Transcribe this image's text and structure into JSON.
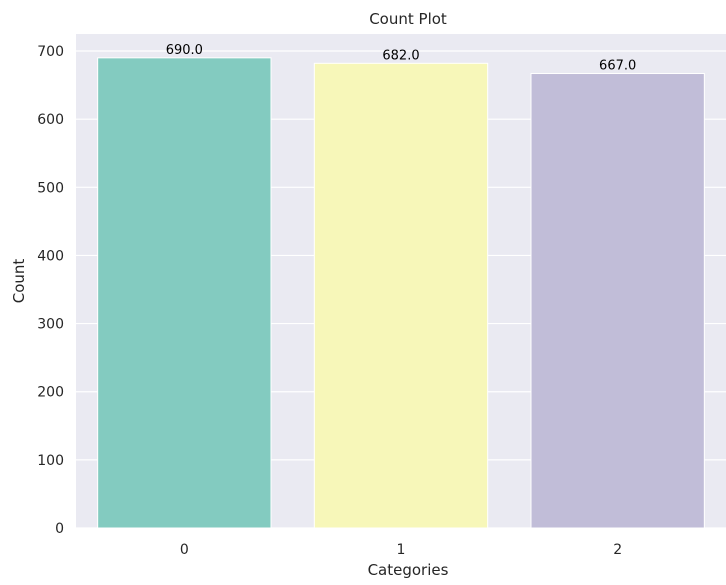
{
  "chart_data": {
    "type": "bar",
    "title": "Count Plot",
    "xlabel": "Categories",
    "ylabel": "Count",
    "categories": [
      "0",
      "1",
      "2"
    ],
    "values": [
      690,
      682,
      667
    ],
    "value_labels": [
      "690.0",
      "682.0",
      "667.0"
    ],
    "colors": [
      "#83cbc0",
      "#f7f7b9",
      "#c1bdd8"
    ],
    "ylim": [
      0,
      725
    ],
    "yticks": [
      0,
      100,
      200,
      300,
      400,
      500,
      600,
      700
    ],
    "grid": true,
    "background": "#eaeaf2",
    "grid_color": "#ffffff"
  }
}
